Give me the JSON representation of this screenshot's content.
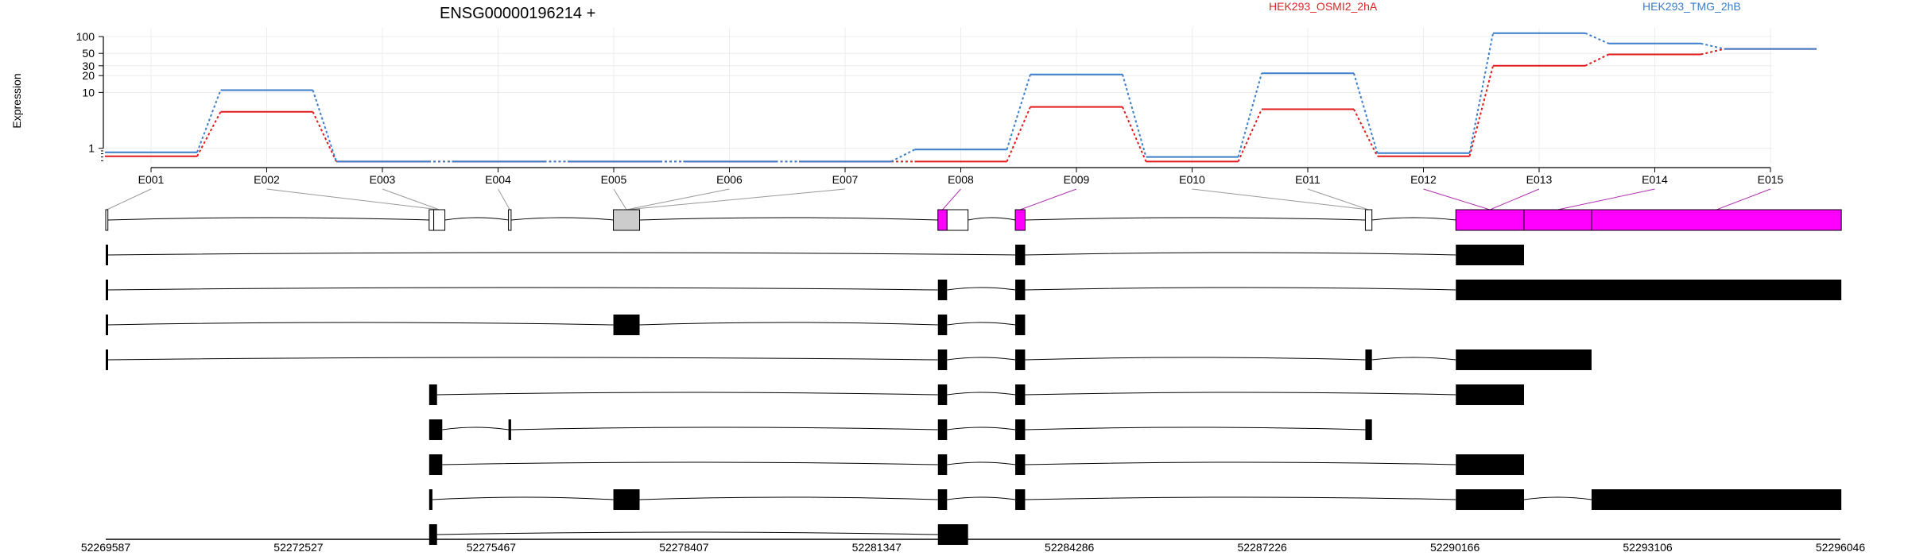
{
  "chart_data": {
    "type": "line",
    "title": "ENSG00000196214 +",
    "ylabel": "Expression",
    "yscale": "log",
    "ylim": [
      0.55,
      130
    ],
    "yticks": [
      1,
      10,
      20,
      30,
      50,
      100
    ],
    "yticklabels": [
      "1",
      "10",
      "20",
      "30",
      "50",
      "100"
    ],
    "grid": true,
    "legend_placement": "top",
    "categories": [
      "E001",
      "E002",
      "E003",
      "E004",
      "E005",
      "E006",
      "E007",
      "E008",
      "E009",
      "E010",
      "E011",
      "E012",
      "E013",
      "E014",
      "E015"
    ],
    "series": [
      {
        "name": "HEK293_OSMI2_2hA",
        "color": "#e31a1c",
        "values": [
          0.72,
          4.5,
          0.58,
          0.58,
          0.58,
          0.58,
          0.58,
          0.58,
          5.5,
          0.58,
          5.0,
          0.72,
          30,
          48,
          60
        ]
      },
      {
        "name": "HEK293_TMG_2hB",
        "color": "#3a7dc9",
        "values": [
          0.85,
          11,
          0.58,
          0.58,
          0.58,
          0.58,
          0.58,
          0.95,
          21,
          0.7,
          22,
          0.82,
          115,
          75,
          60
        ]
      }
    ],
    "exon_bins": [
      {
        "start": 52269587,
        "end": 52269620,
        "fill": "#ffffff"
      },
      {
        "start": 52274520,
        "end": 52274590,
        "fill": "#ffffff"
      },
      {
        "start": 52274590,
        "end": 52274760,
        "fill": "#ffffff"
      },
      {
        "start": 52275730,
        "end": 52275770,
        "fill": "#ffffff"
      },
      {
        "start": 52277330,
        "end": 52277730,
        "fill": "#cccccc"
      },
      {
        "start": 52282280,
        "end": 52282420,
        "fill": "#ff00ff"
      },
      {
        "start": 52282420,
        "end": 52282740,
        "fill": "#ffffff"
      },
      {
        "start": 52283460,
        "end": 52283610,
        "fill": "#ff00ff"
      },
      {
        "start": 52288800,
        "end": 52288900,
        "fill": "#ffffff"
      },
      {
        "start": 52290180,
        "end": 52291220,
        "fill": "#ff00ff"
      },
      {
        "start": 52291220,
        "end": 52292250,
        "fill": "#ff00ff"
      },
      {
        "start": 52292250,
        "end": 52296060,
        "fill": "#ff00ff"
      }
    ],
    "exon_bin_map": [
      0,
      2,
      2,
      3,
      4,
      4,
      4,
      5,
      7,
      8,
      8,
      9,
      9,
      10,
      11
    ],
    "transcripts": [
      [
        [
          52269587,
          52269620
        ],
        [
          52283460,
          52283610
        ],
        [
          52290180,
          52291220
        ]
      ],
      [
        [
          52269587,
          52269620
        ],
        [
          52282280,
          52282420
        ],
        [
          52283460,
          52283610
        ],
        [
          52290180,
          52296060
        ]
      ],
      [
        [
          52269587,
          52269620
        ],
        [
          52277330,
          52277730
        ],
        [
          52282280,
          52282420
        ],
        [
          52283460,
          52283610
        ]
      ],
      [
        [
          52269587,
          52269620
        ],
        [
          52282280,
          52282420
        ],
        [
          52283460,
          52283610
        ],
        [
          52288800,
          52288900
        ],
        [
          52290180,
          52292250
        ]
      ],
      [
        [
          52274520,
          52274640
        ],
        [
          52282280,
          52282420
        ],
        [
          52283460,
          52283610
        ],
        [
          52290180,
          52291220
        ]
      ],
      [
        [
          52274520,
          52274720
        ],
        [
          52275730,
          52275770
        ],
        [
          52282280,
          52282420
        ],
        [
          52283460,
          52283610
        ],
        [
          52288800,
          52288900
        ]
      ],
      [
        [
          52274520,
          52274720
        ],
        [
          52282280,
          52282420
        ],
        [
          52283460,
          52283610
        ],
        [
          52290180,
          52291220
        ]
      ],
      [
        [
          52274520,
          52274570
        ],
        [
          52277330,
          52277730
        ],
        [
          52282280,
          52282420
        ],
        [
          52283460,
          52283610
        ],
        [
          52290180,
          52291220
        ],
        [
          52292250,
          52296060
        ]
      ],
      [
        [
          52274520,
          52274640
        ],
        [
          52282280,
          52282740
        ]
      ]
    ],
    "genomic_axis": {
      "range": [
        52269587,
        52296046
      ],
      "ticks": [
        52269587,
        52272527,
        52275467,
        52278407,
        52281347,
        52284286,
        52287226,
        52290166,
        52293106,
        52296046
      ],
      "ticklabels": [
        "52269587",
        "52272527",
        "52275467",
        "52278407",
        "52281347",
        "52284286",
        "52287226",
        "52290166",
        "52293106",
        "52296046"
      ]
    }
  }
}
